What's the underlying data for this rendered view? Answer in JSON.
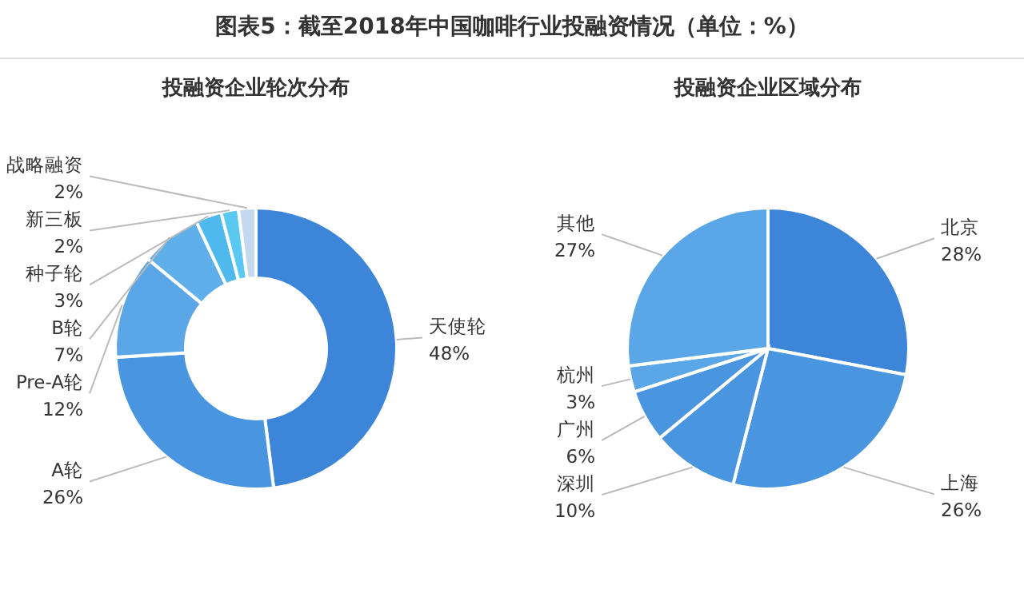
{
  "chart_data": [
    {
      "type": "donut",
      "title": "图表5：截至2018年中国咖啡行业投融资情况（单位：%）",
      "subtitle": "投融资企业轮次分布",
      "categories": [
        "天使轮",
        "A轮",
        "Pre-A轮",
        "B轮",
        "种子轮",
        "新三板",
        "战略融资"
      ],
      "values": [
        48,
        26,
        12,
        7,
        3,
        2,
        2
      ],
      "value_labels": [
        "48%",
        "26%",
        "12%",
        "7%",
        "3%",
        "2%",
        "2%"
      ],
      "colors": [
        "#3d85d8",
        "#4a95e0",
        "#5aa6e6",
        "#5fb0ea",
        "#4fb8ec",
        "#5ac8f0",
        "#c5d9ee"
      ],
      "data_labels": true,
      "legend": false
    },
    {
      "type": "pie",
      "subtitle": "投融资企业区域分布",
      "categories": [
        "北京",
        "上海",
        "深圳",
        "广州",
        "杭州",
        "其他"
      ],
      "values": [
        28,
        26,
        10,
        6,
        3,
        27
      ],
      "value_labels": [
        "28%",
        "26%",
        "10%",
        "6%",
        "3%",
        "27%"
      ],
      "colors": [
        "#3d85d8",
        "#4a95e0",
        "#4a95e0",
        "#4a95e0",
        "#5aa6e6",
        "#5aa6e6"
      ],
      "data_labels": true,
      "legend": false
    }
  ]
}
